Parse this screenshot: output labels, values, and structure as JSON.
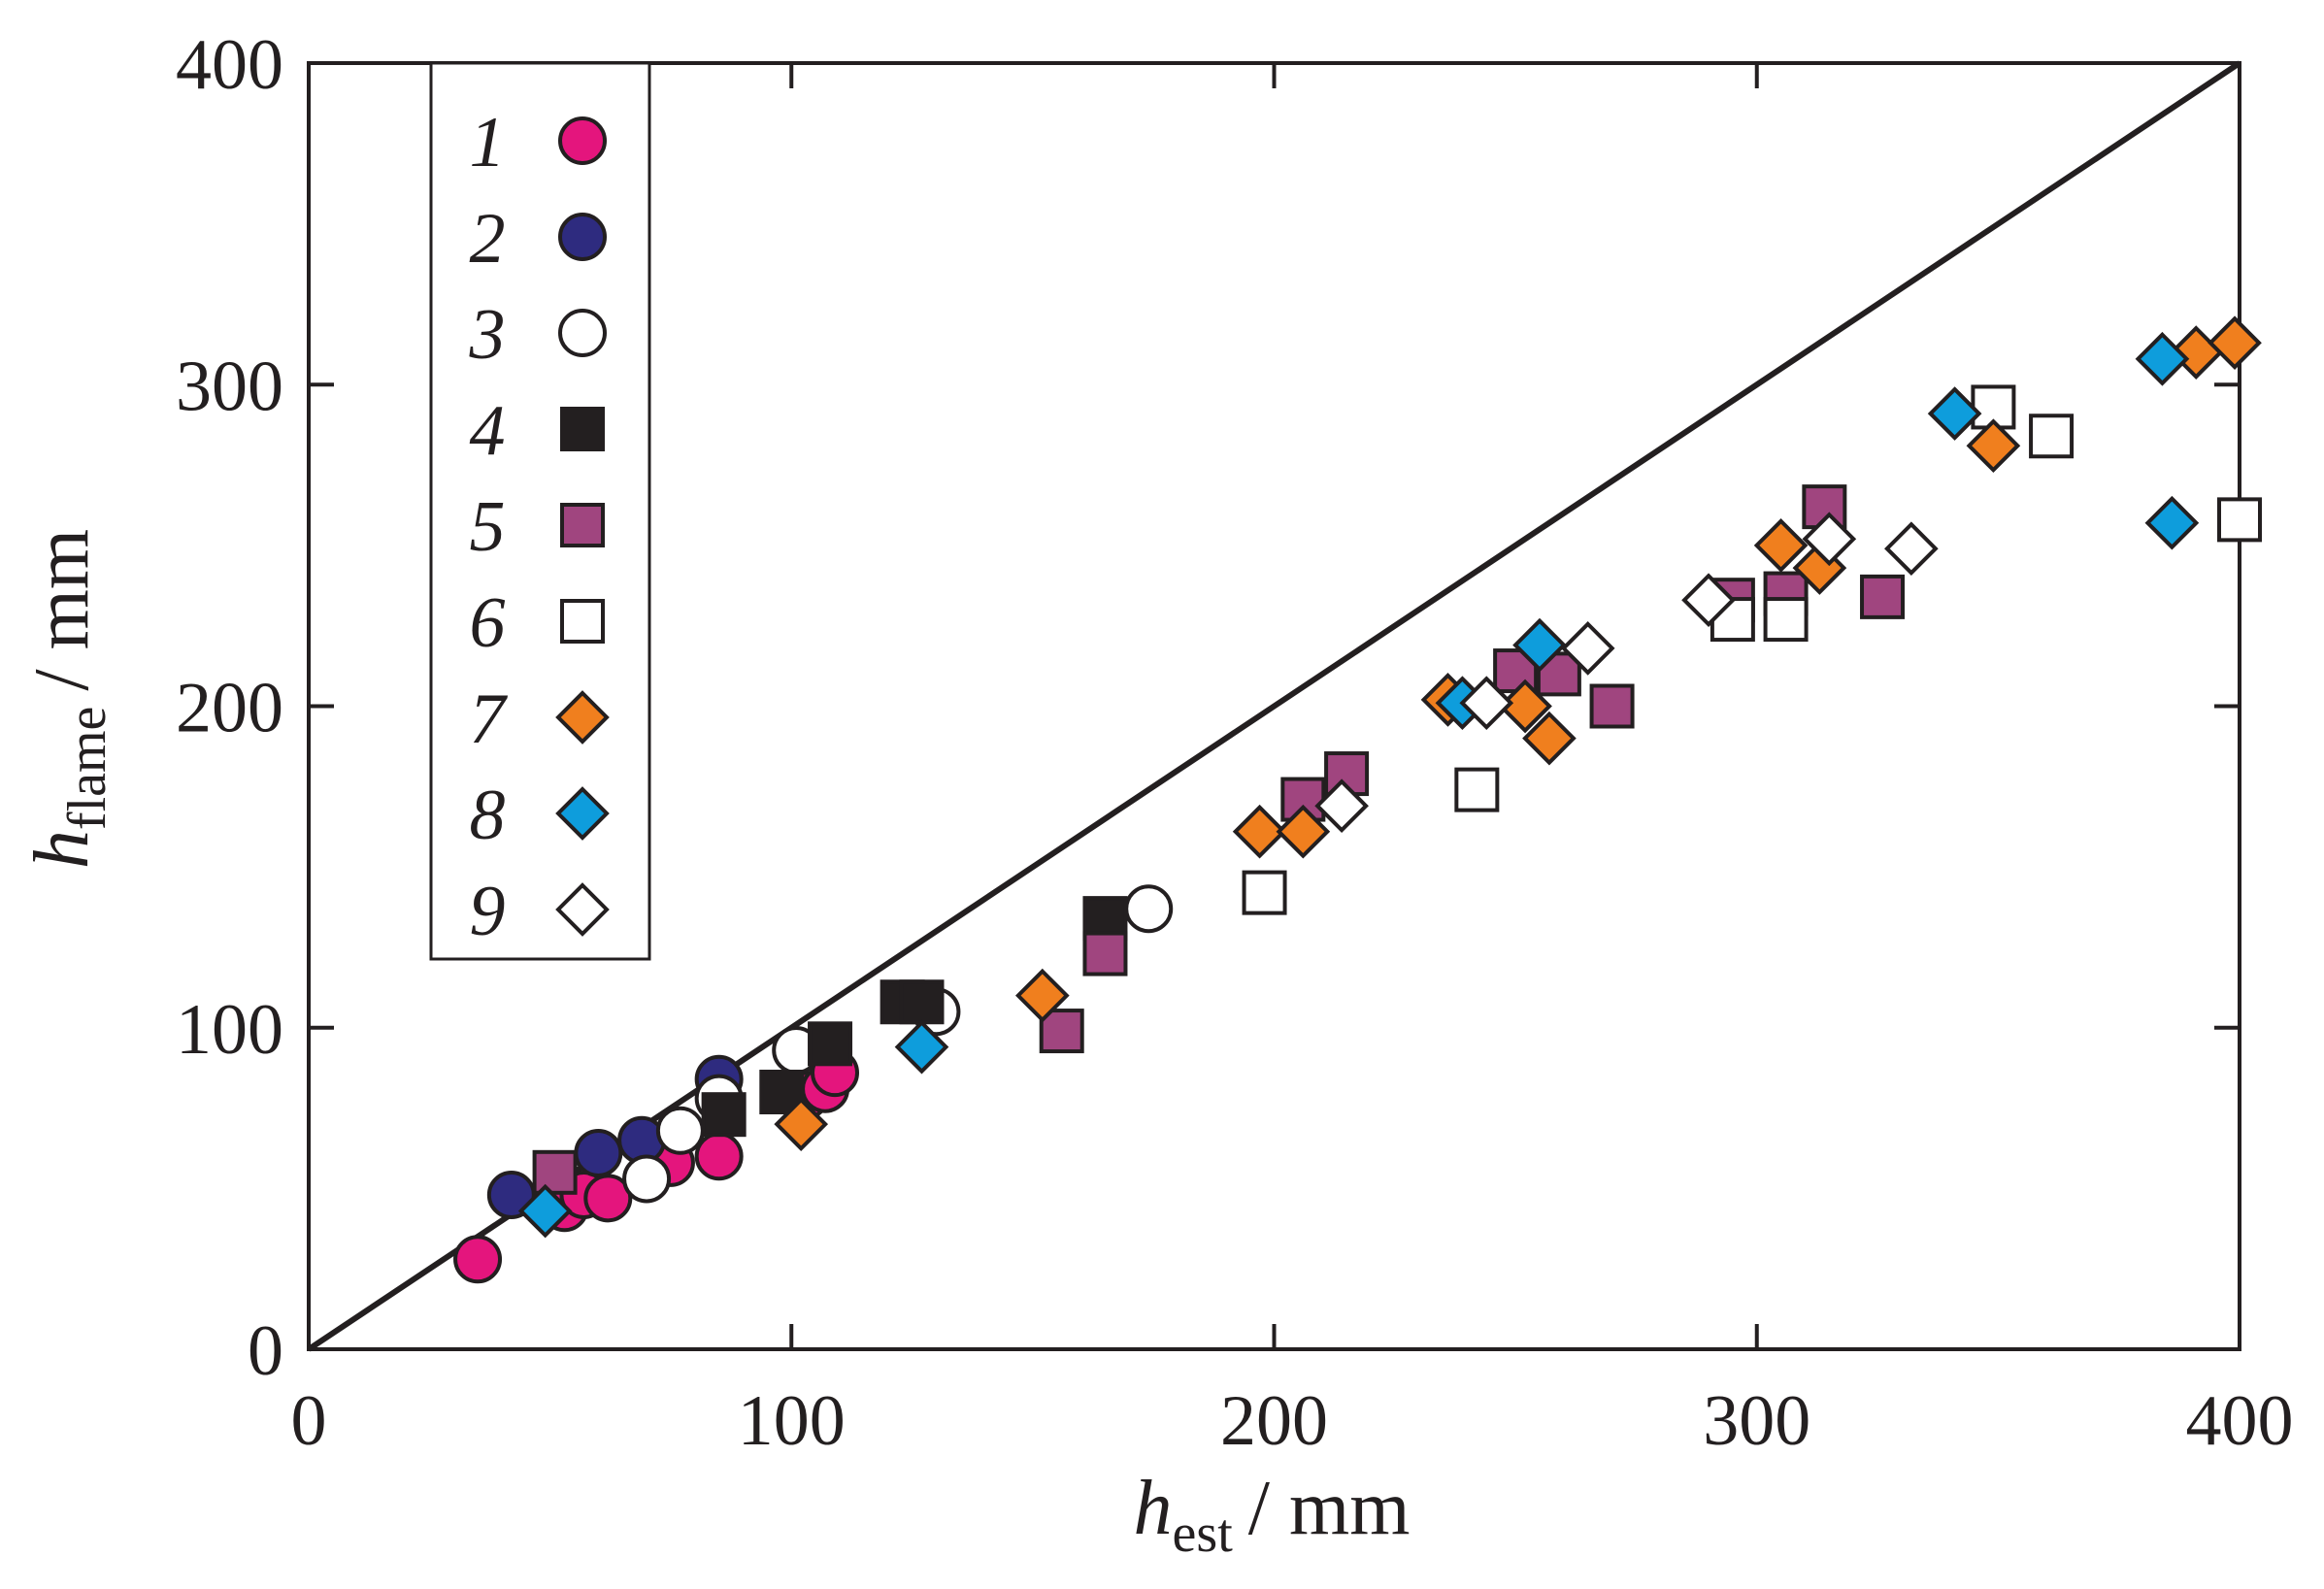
{
  "chart_data": {
    "type": "scatter",
    "x_axis": {
      "label_var": "h",
      "label_sub": "est",
      "label_unit": "/ mm",
      "range": [
        0,
        400
      ],
      "ticks": [
        "0",
        "100",
        "200",
        "300",
        "400"
      ]
    },
    "y_axis": {
      "label_var": "h",
      "label_sub": "flame",
      "label_unit": "/ mm",
      "range": [
        0,
        400
      ],
      "ticks": [
        "0",
        "100",
        "200",
        "300",
        "400"
      ]
    },
    "reference_line": {
      "type": "y = x",
      "from": [
        0,
        0
      ],
      "to": [
        400,
        400
      ],
      "color": "#231f20"
    },
    "grid": false,
    "legend_position": "top-left",
    "series": [
      {
        "name": "1",
        "marker": "circle",
        "fill": "#e4157d",
        "points": [
          [
            35,
            28
          ],
          [
            53,
            44
          ],
          [
            57,
            48
          ],
          [
            62,
            47
          ],
          [
            75,
            58
          ],
          [
            85,
            60
          ],
          [
            103,
            79
          ],
          [
            107,
            81
          ],
          [
            109,
            86
          ]
        ]
      },
      {
        "name": "2",
        "marker": "circle",
        "fill": "#2e2b7f",
        "points": [
          [
            42,
            48
          ],
          [
            60,
            61
          ],
          [
            69,
            65
          ],
          [
            85,
            84
          ]
        ]
      },
      {
        "name": "3",
        "marker": "circle",
        "fill": "#ffffff",
        "points": [
          [
            70,
            53
          ],
          [
            77,
            68
          ],
          [
            85,
            78
          ],
          [
            101,
            93
          ],
          [
            130,
            105
          ],
          [
            174,
            137
          ]
        ]
      },
      {
        "name": "4",
        "marker": "square",
        "fill": "#231f20",
        "points": [
          [
            86,
            73
          ],
          [
            98,
            80
          ],
          [
            108,
            95
          ],
          [
            123,
            108
          ],
          [
            127,
            108
          ],
          [
            165,
            134
          ]
        ]
      },
      {
        "name": "5",
        "marker": "square",
        "fill": "#a0457f",
        "points": [
          [
            51,
            55
          ],
          [
            156,
            99
          ],
          [
            165,
            123
          ],
          [
            206,
            171
          ],
          [
            215,
            179
          ],
          [
            250,
            211
          ],
          [
            259,
            210
          ],
          [
            270,
            200
          ],
          [
            295,
            233
          ],
          [
            306,
            235
          ],
          [
            314,
            262
          ],
          [
            326,
            234
          ]
        ]
      },
      {
        "name": "6",
        "marker": "square",
        "fill": "#ffffff",
        "points": [
          [
            198,
            142
          ],
          [
            242,
            174
          ],
          [
            295,
            227
          ],
          [
            306,
            227
          ],
          [
            349,
            293
          ],
          [
            361,
            284
          ],
          [
            400,
            258
          ]
        ]
      },
      {
        "name": "7",
        "marker": "diamond",
        "fill": "#f07f1e",
        "points": [
          [
            102,
            70
          ],
          [
            152,
            110
          ],
          [
            197,
            161
          ],
          [
            206,
            161
          ],
          [
            236,
            202
          ],
          [
            252,
            200
          ],
          [
            257,
            190
          ],
          [
            305,
            250
          ],
          [
            313,
            243
          ],
          [
            349,
            281
          ],
          [
            391,
            310
          ],
          [
            399,
            313
          ]
        ]
      },
      {
        "name": "8",
        "marker": "diamond",
        "fill": "#0e9ddc",
        "points": [
          [
            49,
            43
          ],
          [
            127,
            94
          ],
          [
            239,
            201
          ],
          [
            255,
            219
          ],
          [
            341,
            291
          ],
          [
            384,
            308
          ],
          [
            386,
            257
          ]
        ]
      },
      {
        "name": "9",
        "marker": "diamond",
        "fill": "#ffffff",
        "points": [
          [
            214,
            169
          ],
          [
            244,
            201
          ],
          [
            265,
            218
          ],
          [
            290,
            233
          ],
          [
            315,
            252
          ],
          [
            332,
            249
          ]
        ]
      }
    ]
  }
}
